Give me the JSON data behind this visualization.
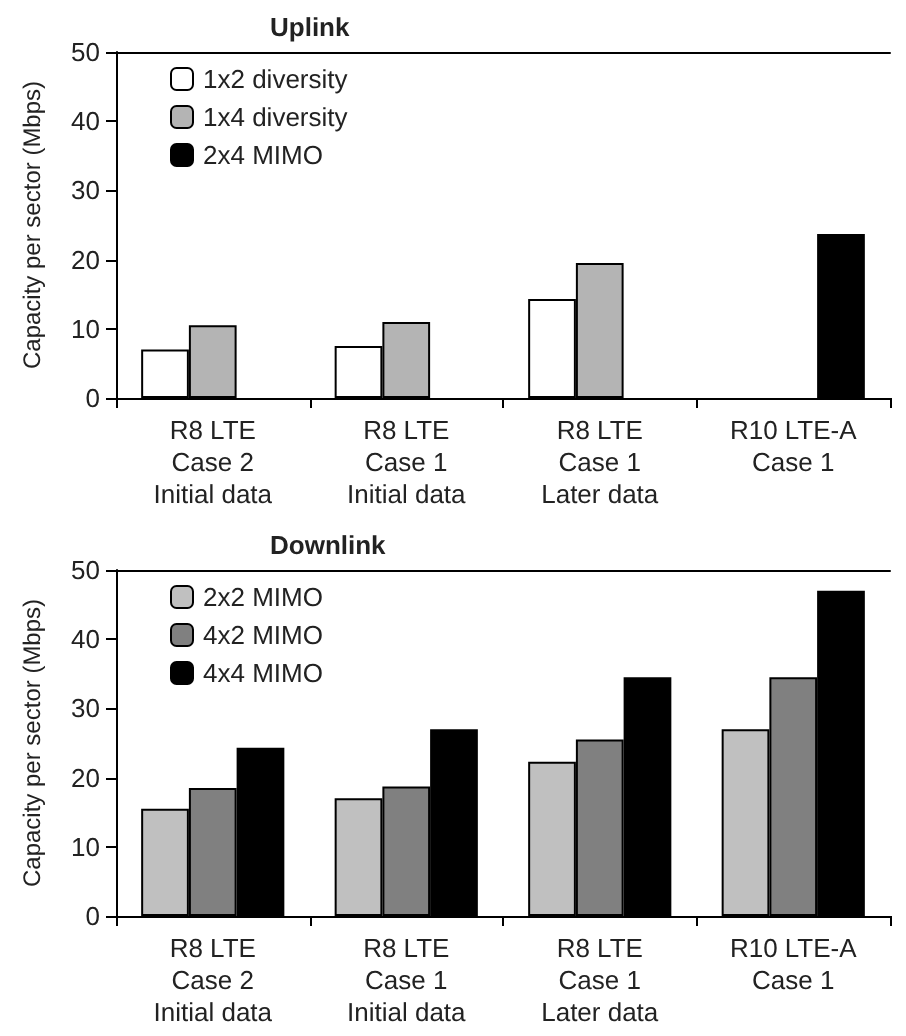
{
  "chart_data": [
    {
      "type": "bar",
      "title": "Uplink",
      "ylabel": "Capacity per sector (Mbps)",
      "categories": [
        "R8 LTE\nCase 2\nInitial data",
        "R8 LTE\nCase 1\nInitial data",
        "R8 LTE\nCase 1\nLater data",
        "R10 LTE-A\nCase 1"
      ],
      "series": [
        {
          "name": "1x2 diversity",
          "color": "#ffffff",
          "values": [
            7,
            7.5,
            14.3,
            null
          ]
        },
        {
          "name": "1x4 diversity",
          "color": "#b4b4b4",
          "values": [
            10.5,
            11,
            19.5,
            null
          ]
        },
        {
          "name": "2x4 MIMO",
          "color": "#000000",
          "values": [
            null,
            null,
            null,
            23.7
          ]
        }
      ],
      "ylim": [
        0,
        50
      ],
      "yticks": [
        0,
        10,
        20,
        30,
        40,
        50
      ],
      "grid": false,
      "legend": "top left"
    },
    {
      "type": "bar",
      "title": "Downlink",
      "ylabel": "Capacity per sector (Mbps)",
      "categories": [
        "R8 LTE\nCase 2\nInitial data",
        "R8 LTE\nCase 1\nInitial data",
        "R8 LTE\nCase 1\nLater data",
        "R10 LTE-A\nCase 1"
      ],
      "series": [
        {
          "name": "2x2 MIMO",
          "color": "#c0c0c0",
          "values": [
            15.5,
            17,
            22.3,
            27
          ]
        },
        {
          "name": "4x2 MIMO",
          "color": "#808080",
          "values": [
            18.5,
            18.7,
            25.5,
            34.5
          ]
        },
        {
          "name": "4x4 MIMO",
          "color": "#000000",
          "values": [
            24.3,
            27,
            34.5,
            47
          ]
        }
      ],
      "ylim": [
        0,
        50
      ],
      "yticks": [
        0,
        10,
        20,
        30,
        40,
        50
      ],
      "grid": false,
      "legend": "top left"
    }
  ]
}
